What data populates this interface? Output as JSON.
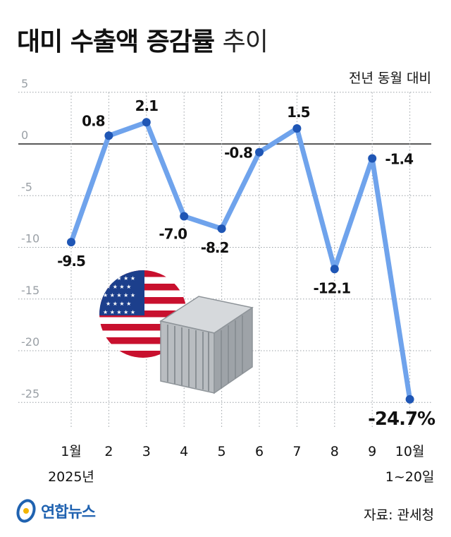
{
  "header": {
    "title_bold": "대미 수출액 증감률",
    "title_light": "추이",
    "unit_note": "전년 동월 대비"
  },
  "footer": {
    "logo_text": "연합뉴스",
    "source": "자료: 관세청"
  },
  "colors": {
    "line": "#6fa3ec",
    "point": "#1f56b5",
    "grid": "#9aa0a6",
    "zero_line": "#222222"
  },
  "chart_data": {
    "type": "line",
    "title": "대미 수출액 증감률 추이",
    "ylabel": "전년 동월 대비",
    "xlabel": "",
    "categories": [
      "1월",
      "2",
      "3",
      "4",
      "5",
      "6",
      "7",
      "8",
      "9",
      "10월"
    ],
    "category_sublabels": [
      "2025년",
      "",
      "",
      "",
      "",
      "",
      "",
      "",
      "",
      "1~20일"
    ],
    "values": [
      -9.5,
      0.8,
      2.1,
      -7.0,
      -8.2,
      -0.8,
      1.5,
      -12.1,
      -1.4,
      -24.7
    ],
    "value_labels": [
      "-9.5",
      "0.8",
      "2.1",
      "-7.0",
      "-8.2",
      "-0.8",
      "1.5",
      "-12.1",
      "-1.4",
      "-24.7%"
    ],
    "yticks": [
      5,
      0,
      -5,
      -10,
      -15,
      -20,
      -25
    ],
    "ytick_labels": [
      "5",
      "0",
      "-5",
      "-10",
      "-15",
      "-20",
      "-25"
    ],
    "ylim": [
      -25,
      5
    ],
    "grid": true,
    "illustration": [
      "us-flag",
      "shipping-container"
    ]
  }
}
